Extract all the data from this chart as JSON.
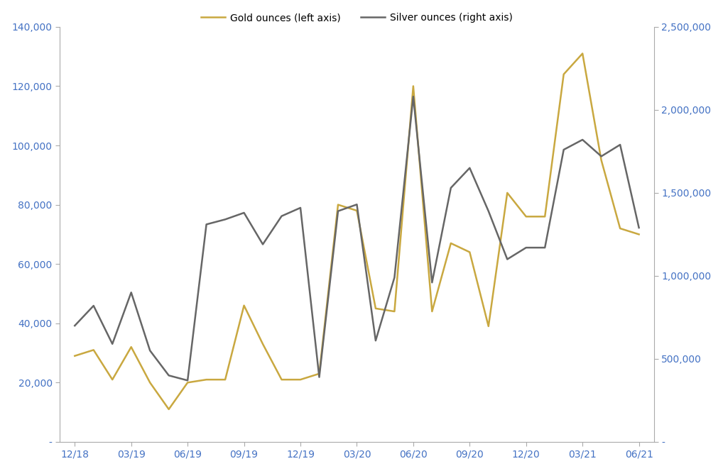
{
  "gold_values": [
    29000,
    31000,
    21000,
    32000,
    20000,
    11000,
    20000,
    21000,
    21000,
    46000,
    33000,
    21000,
    21000,
    23000,
    80000,
    78000,
    45000,
    44000,
    120000,
    44000,
    67000,
    64000,
    39000,
    84000,
    76000,
    76000,
    124000,
    131000,
    95000,
    72000,
    70000
  ],
  "silver_values": [
    700000,
    820000,
    590000,
    900000,
    550000,
    400000,
    370000,
    1310000,
    1340000,
    1380000,
    1190000,
    1360000,
    1410000,
    390000,
    1390000,
    1430000,
    610000,
    990000,
    2080000,
    960000,
    1530000,
    1650000,
    1390000,
    1100000,
    1170000,
    1170000,
    1760000,
    1820000,
    1720000,
    1790000,
    1290000
  ],
  "gold_color": "#C9A840",
  "silver_color": "#666666",
  "gold_label": "Gold ounces (left axis)",
  "silver_label": "Silver ounces (right axis)",
  "left_ylim": [
    0,
    140000
  ],
  "right_ylim": [
    0,
    2500000
  ],
  "left_yticks": [
    0,
    20000,
    40000,
    60000,
    80000,
    100000,
    120000,
    140000
  ],
  "right_yticks": [
    0,
    500000,
    1000000,
    1500000,
    2000000,
    2500000
  ],
  "xtick_labels": [
    "12/18",
    "03/19",
    "06/19",
    "09/19",
    "12/19",
    "03/20",
    "06/20",
    "09/20",
    "12/20",
    "03/21",
    "06/21"
  ],
  "xtick_positions": [
    0,
    3,
    6,
    9,
    12,
    15,
    18,
    21,
    24,
    27,
    30
  ],
  "background_color": "#ffffff",
  "line_width": 1.8,
  "tick_label_color": "#4472C4",
  "tick_label_size": 10,
  "legend_fontsize": 10
}
